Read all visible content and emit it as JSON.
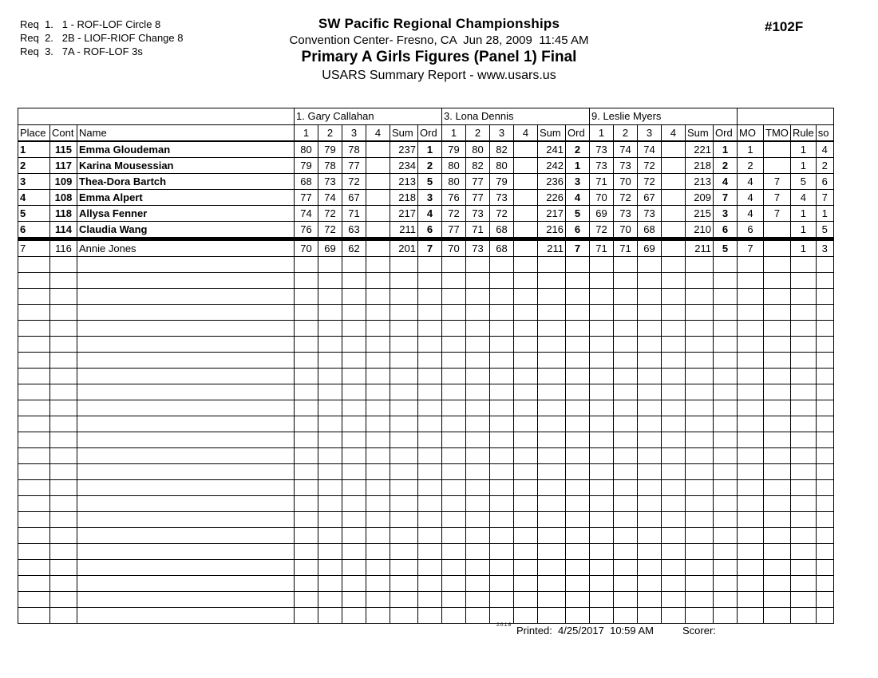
{
  "header": {
    "requirements": [
      "Req  1.   1 - ROF-LOF Circle 8",
      "Req  2.   2B - LIOF-RIOF Change 8",
      "Req  3.   7A - ROF-LOF 3s"
    ],
    "title": "SW Pacific Regional Championships",
    "venue_line": "Convention Center- Fresno, CA  Jun 28, 2009  11:45 AM",
    "event_line": "Primary A Girls Figures (Panel 1) Final",
    "report_line": "USARS Summary Report - www.usars.us",
    "event_number": "#102F"
  },
  "table": {
    "judges": [
      "1.  Gary Callahan",
      "3.  Lona Dennis",
      "9.  Leslie Myers"
    ],
    "columns": {
      "place": "Place",
      "cont": "Cont",
      "name": "Name",
      "score_headers": [
        "1",
        "2",
        "3",
        "4"
      ],
      "sum": "Sum",
      "ord": "Ord",
      "mo": "MO",
      "tmo": "TMO",
      "rule": "Rule",
      "so": "so"
    },
    "rows": [
      {
        "place": "1",
        "cont": "115",
        "name": "Emma Gloudeman",
        "bold": true,
        "judges": [
          {
            "scores": [
              "80",
              "79",
              "78",
              ""
            ],
            "sum": "237",
            "ord": "1"
          },
          {
            "scores": [
              "79",
              "80",
              "82",
              ""
            ],
            "sum": "241",
            "ord": "2"
          },
          {
            "scores": [
              "73",
              "74",
              "74",
              ""
            ],
            "sum": "221",
            "ord": "1"
          }
        ],
        "mo": "1",
        "tmo": "",
        "rule": "1",
        "so": "4"
      },
      {
        "place": "2",
        "cont": "117",
        "name": "Karina Mousessian",
        "bold": true,
        "judges": [
          {
            "scores": [
              "79",
              "78",
              "77",
              ""
            ],
            "sum": "234",
            "ord": "2"
          },
          {
            "scores": [
              "80",
              "82",
              "80",
              ""
            ],
            "sum": "242",
            "ord": "1"
          },
          {
            "scores": [
              "73",
              "73",
              "72",
              ""
            ],
            "sum": "218",
            "ord": "2"
          }
        ],
        "mo": "2",
        "tmo": "",
        "rule": "1",
        "so": "2"
      },
      {
        "place": "3",
        "cont": "109",
        "name": "Thea-Dora Bartch",
        "bold": true,
        "judges": [
          {
            "scores": [
              "68",
              "73",
              "72",
              ""
            ],
            "sum": "213",
            "ord": "5"
          },
          {
            "scores": [
              "80",
              "77",
              "79",
              ""
            ],
            "sum": "236",
            "ord": "3"
          },
          {
            "scores": [
              "71",
              "70",
              "72",
              ""
            ],
            "sum": "213",
            "ord": "4"
          }
        ],
        "mo": "4",
        "tmo": "7",
        "rule": "5",
        "so": "6"
      },
      {
        "place": "4",
        "cont": "108",
        "name": "Emma Alpert",
        "bold": true,
        "judges": [
          {
            "scores": [
              "77",
              "74",
              "67",
              ""
            ],
            "sum": "218",
            "ord": "3"
          },
          {
            "scores": [
              "76",
              "77",
              "73",
              ""
            ],
            "sum": "226",
            "ord": "4"
          },
          {
            "scores": [
              "70",
              "72",
              "67",
              ""
            ],
            "sum": "209",
            "ord": "7"
          }
        ],
        "mo": "4",
        "tmo": "7",
        "rule": "4",
        "so": "7"
      },
      {
        "place": "5",
        "cont": "118",
        "name": "Allysa Fenner",
        "bold": true,
        "judges": [
          {
            "scores": [
              "74",
              "72",
              "71",
              ""
            ],
            "sum": "217",
            "ord": "4"
          },
          {
            "scores": [
              "72",
              "73",
              "72",
              ""
            ],
            "sum": "217",
            "ord": "5"
          },
          {
            "scores": [
              "69",
              "73",
              "73",
              ""
            ],
            "sum": "215",
            "ord": "3"
          }
        ],
        "mo": "4",
        "tmo": "7",
        "rule": "1",
        "so": "1"
      },
      {
        "place": "6",
        "cont": "114",
        "name": "Claudia Wang",
        "bold": true,
        "judges": [
          {
            "scores": [
              "76",
              "72",
              "63",
              ""
            ],
            "sum": "211",
            "ord": "6"
          },
          {
            "scores": [
              "77",
              "71",
              "68",
              ""
            ],
            "sum": "216",
            "ord": "6"
          },
          {
            "scores": [
              "72",
              "70",
              "68",
              ""
            ],
            "sum": "210",
            "ord": "6"
          }
        ],
        "mo": "6",
        "tmo": "",
        "rule": "1",
        "so": "5"
      },
      {
        "place": "7",
        "cont": "116",
        "name": "Annie Jones",
        "bold": false,
        "judges": [
          {
            "scores": [
              "70",
              "69",
              "62",
              ""
            ],
            "sum": "201",
            "ord": "7"
          },
          {
            "scores": [
              "70",
              "73",
              "68",
              ""
            ],
            "sum": "211",
            "ord": "7"
          },
          {
            "scores": [
              "71",
              "71",
              "69",
              ""
            ],
            "sum": "211",
            "ord": "5"
          }
        ],
        "mo": "7",
        "tmo": "",
        "rule": "1",
        "so": "3"
      }
    ],
    "cut_line_after": 6,
    "empty_rows": 23
  },
  "footer": {
    "version": "2.0.1.6",
    "printed": "Printed:  4/25/2017  10:59 AM",
    "scorer": "Scorer:"
  }
}
